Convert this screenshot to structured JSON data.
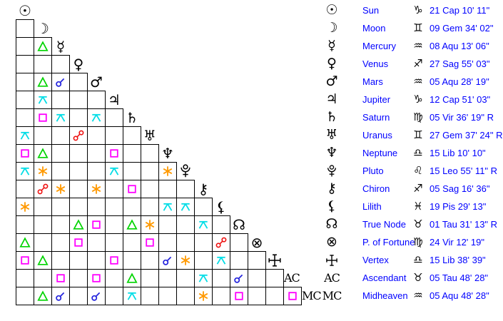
{
  "colors": {
    "conjunction": "#2323dd",
    "sextile": "#ff9900",
    "square": "#ff00ff",
    "trine": "#00d400",
    "opposition": "#ee1111",
    "quincunx": "#00dde6",
    "legend_text": "#0000ff",
    "glyph": "#000000",
    "grid_line": "#000000"
  },
  "legend": {
    "planets": [
      {
        "name": "Sun",
        "glyph": "☉",
        "glyph_kind": "unicode",
        "sign": "♑",
        "sign_name": "Capricorn",
        "position": "21 Cap 10' 11\""
      },
      {
        "name": "Moon",
        "glyph": "☽",
        "glyph_kind": "unicode",
        "sign": "♊",
        "sign_name": "Gemini",
        "position": "09 Gem 34' 02\""
      },
      {
        "name": "Mercury",
        "glyph": "☿",
        "glyph_kind": "unicode",
        "sign": "♒",
        "sign_name": "Aquarius",
        "position": "08 Aqu 13' 06\""
      },
      {
        "name": "Venus",
        "glyph": "♀",
        "glyph_kind": "unicode",
        "sign": "♐",
        "sign_name": "Sagittarius",
        "position": "27 Sag 55' 03\""
      },
      {
        "name": "Mars",
        "glyph": "♂",
        "glyph_kind": "unicode",
        "sign": "♒",
        "sign_name": "Aquarius",
        "position": "05 Aqu 28' 19\""
      },
      {
        "name": "Jupiter",
        "glyph": "♃",
        "glyph_kind": "unicode",
        "sign": "♑",
        "sign_name": "Capricorn",
        "position": "12 Cap 51' 03\""
      },
      {
        "name": "Saturn",
        "glyph": "♄",
        "glyph_kind": "unicode",
        "sign": "♍",
        "sign_name": "Virgo",
        "position": "05 Vir 36' 19\" R"
      },
      {
        "name": "Uranus",
        "glyph": "♅",
        "glyph_kind": "unicode",
        "sign": "♊",
        "sign_name": "Gemini",
        "position": "27 Gem 37' 24\" R"
      },
      {
        "name": "Neptune",
        "glyph": "♆",
        "glyph_kind": "unicode",
        "sign": "♎",
        "sign_name": "Libra",
        "position": "15 Lib 10' 10\""
      },
      {
        "name": "Pluto",
        "glyph": "pluto",
        "glyph_kind": "svg",
        "sign": "♌",
        "sign_name": "Leo",
        "position": "15 Leo 55' 11\" R"
      },
      {
        "name": "Chiron",
        "glyph": "⚷",
        "glyph_kind": "unicode",
        "sign": "♐",
        "sign_name": "Sagittarius",
        "position": "05 Sag 16' 36\""
      },
      {
        "name": "Lilith",
        "glyph": "⚸",
        "glyph_kind": "unicode",
        "sign": "♓",
        "sign_name": "Pisces",
        "position": "19 Pis 29' 13\""
      },
      {
        "name": "True Node",
        "glyph": "☊",
        "glyph_kind": "unicode",
        "sign": "♉",
        "sign_name": "Taurus",
        "position": "01 Tau 31' 13\" R"
      },
      {
        "name": "P. of Fortune",
        "glyph": "⊗",
        "glyph_kind": "unicode",
        "sign": "♍",
        "sign_name": "Virgo",
        "position": "24 Vir 12' 19\""
      },
      {
        "name": "Vertex",
        "glyph": "vertex",
        "glyph_kind": "svg",
        "sign": "♎",
        "sign_name": "Libra",
        "position": "15 Lib 38' 39\""
      },
      {
        "name": "Ascendant",
        "glyph": "AC",
        "glyph_kind": "text",
        "sign": "♉",
        "sign_name": "Taurus",
        "position": "05 Tau 48' 28\""
      },
      {
        "name": "Midheaven",
        "glyph": "MC",
        "glyph_kind": "text",
        "sign": "♒",
        "sign_name": "Aquarius",
        "position": "05 Aqu 48' 28\""
      }
    ]
  },
  "grid": {
    "aspects": [
      {
        "row": 2,
        "col": 1,
        "type": "trine"
      },
      {
        "row": 4,
        "col": 1,
        "type": "trine"
      },
      {
        "row": 4,
        "col": 2,
        "type": "conjunction"
      },
      {
        "row": 5,
        "col": 1,
        "type": "quincunx"
      },
      {
        "row": 6,
        "col": 1,
        "type": "square"
      },
      {
        "row": 6,
        "col": 2,
        "type": "quincunx"
      },
      {
        "row": 6,
        "col": 4,
        "type": "quincunx"
      },
      {
        "row": 7,
        "col": 0,
        "type": "quincunx"
      },
      {
        "row": 7,
        "col": 3,
        "type": "opposition"
      },
      {
        "row": 8,
        "col": 0,
        "type": "square"
      },
      {
        "row": 8,
        "col": 1,
        "type": "trine"
      },
      {
        "row": 8,
        "col": 5,
        "type": "square"
      },
      {
        "row": 9,
        "col": 0,
        "type": "quincunx"
      },
      {
        "row": 9,
        "col": 1,
        "type": "sextile"
      },
      {
        "row": 9,
        "col": 5,
        "type": "quincunx"
      },
      {
        "row": 9,
        "col": 8,
        "type": "sextile"
      },
      {
        "row": 10,
        "col": 1,
        "type": "opposition"
      },
      {
        "row": 10,
        "col": 2,
        "type": "sextile"
      },
      {
        "row": 10,
        "col": 4,
        "type": "sextile"
      },
      {
        "row": 10,
        "col": 6,
        "type": "square"
      },
      {
        "row": 11,
        "col": 0,
        "type": "sextile"
      },
      {
        "row": 11,
        "col": 8,
        "type": "quincunx"
      },
      {
        "row": 11,
        "col": 9,
        "type": "quincunx"
      },
      {
        "row": 12,
        "col": 3,
        "type": "trine"
      },
      {
        "row": 12,
        "col": 4,
        "type": "square"
      },
      {
        "row": 12,
        "col": 6,
        "type": "trine"
      },
      {
        "row": 12,
        "col": 7,
        "type": "sextile"
      },
      {
        "row": 12,
        "col": 10,
        "type": "quincunx"
      },
      {
        "row": 13,
        "col": 0,
        "type": "trine"
      },
      {
        "row": 13,
        "col": 3,
        "type": "square"
      },
      {
        "row": 13,
        "col": 7,
        "type": "square"
      },
      {
        "row": 13,
        "col": 11,
        "type": "opposition"
      },
      {
        "row": 14,
        "col": 0,
        "type": "square"
      },
      {
        "row": 14,
        "col": 1,
        "type": "trine"
      },
      {
        "row": 14,
        "col": 5,
        "type": "square"
      },
      {
        "row": 14,
        "col": 8,
        "type": "conjunction"
      },
      {
        "row": 14,
        "col": 9,
        "type": "sextile"
      },
      {
        "row": 14,
        "col": 11,
        "type": "quincunx"
      },
      {
        "row": 15,
        "col": 2,
        "type": "square"
      },
      {
        "row": 15,
        "col": 4,
        "type": "square"
      },
      {
        "row": 15,
        "col": 6,
        "type": "trine"
      },
      {
        "row": 15,
        "col": 10,
        "type": "quincunx"
      },
      {
        "row": 15,
        "col": 12,
        "type": "conjunction"
      },
      {
        "row": 16,
        "col": 1,
        "type": "trine"
      },
      {
        "row": 16,
        "col": 2,
        "type": "conjunction"
      },
      {
        "row": 16,
        "col": 4,
        "type": "conjunction"
      },
      {
        "row": 16,
        "col": 6,
        "type": "quincunx"
      },
      {
        "row": 16,
        "col": 10,
        "type": "sextile"
      },
      {
        "row": 16,
        "col": 12,
        "type": "square"
      },
      {
        "row": 16,
        "col": 15,
        "type": "square"
      }
    ]
  }
}
